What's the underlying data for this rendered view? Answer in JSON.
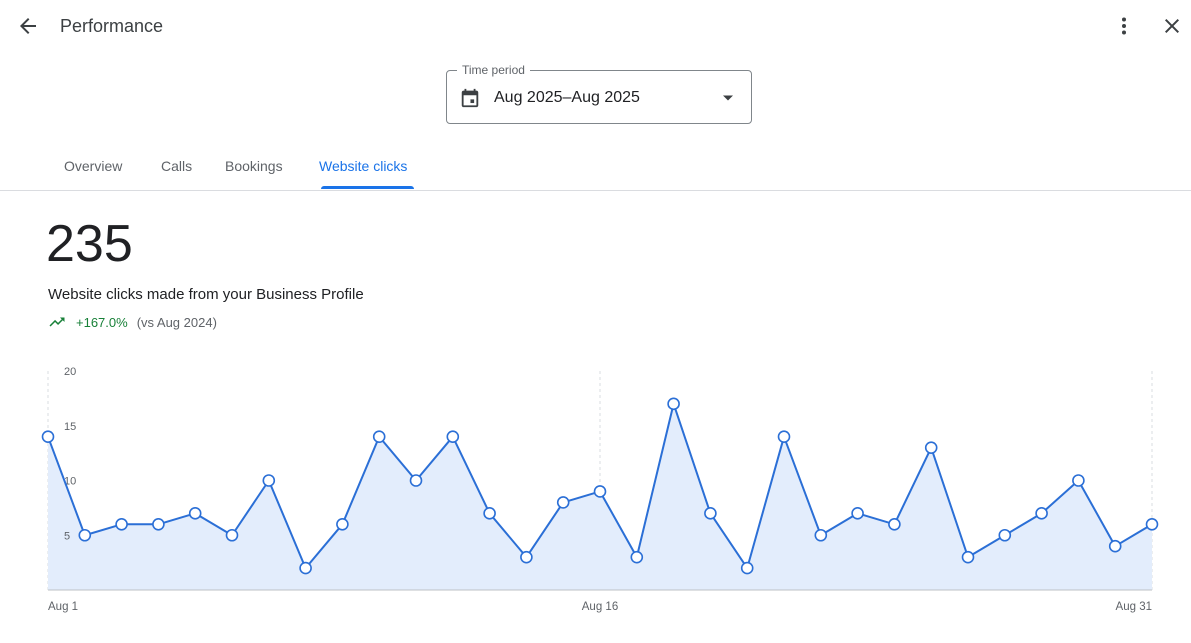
{
  "header": {
    "title": "Performance"
  },
  "time_period": {
    "label": "Time period",
    "value": "Aug 2025–Aug 2025"
  },
  "tabs": [
    {
      "label": "Overview",
      "active": false
    },
    {
      "label": "Calls",
      "active": false
    },
    {
      "label": "Bookings",
      "active": false
    },
    {
      "label": "Website clicks",
      "active": true
    }
  ],
  "metric": {
    "total": "235",
    "description": "Website clicks made from your Business Profile",
    "change": "+167.0%",
    "comparison": "(vs Aug 2024)"
  },
  "colors": {
    "accent": "#1a73e8",
    "line": "#2b6fd6",
    "area": "#e3edfc",
    "positive": "#188038"
  },
  "icons": {
    "back": "arrow-back-icon",
    "more": "more-vert-icon",
    "close": "close-icon",
    "calendar": "calendar-icon",
    "dropdown": "arrow-drop-down-icon",
    "trend": "trending-up-icon"
  },
  "chart_data": {
    "type": "area",
    "title": "",
    "xlabel": "",
    "ylabel": "",
    "ylim": [
      0,
      20
    ],
    "yticks": [
      5,
      10,
      15,
      20
    ],
    "x_tick_labels": [
      "Aug 1",
      "Aug 16",
      "Aug 31"
    ],
    "x_tick_days": [
      1,
      16,
      31
    ],
    "x": [
      1,
      2,
      3,
      4,
      5,
      6,
      7,
      8,
      9,
      10,
      11,
      12,
      13,
      14,
      15,
      16,
      17,
      18,
      19,
      20,
      21,
      22,
      23,
      24,
      25,
      26,
      27,
      28,
      29,
      30,
      31
    ],
    "series": [
      {
        "name": "",
        "values": [
          14,
          5,
          6,
          6,
          7,
          5,
          10,
          2,
          6,
          14,
          10,
          14,
          7,
          3,
          8,
          9,
          3,
          17,
          7,
          2,
          14,
          5,
          7,
          6,
          13,
          3,
          5,
          7,
          10,
          4,
          6
        ]
      }
    ],
    "grid": true
  }
}
